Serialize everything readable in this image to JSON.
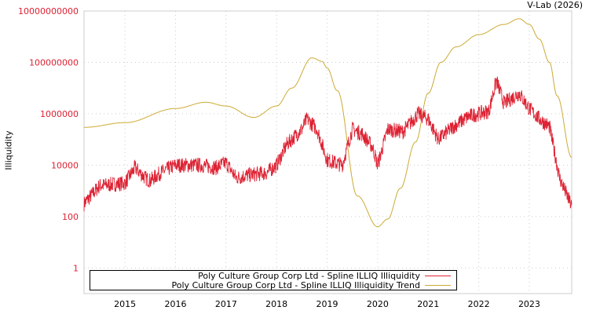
{
  "credit": "V-Lab (2026)",
  "chart_data": {
    "type": "line",
    "title": "",
    "xlabel": "",
    "ylabel": "Illiquidity",
    "yscale": "log",
    "ylim": [
      0.1,
      10000000000
    ],
    "xlim": [
      2014.19,
      2023.84
    ],
    "yticks": [
      "1",
      "100",
      "10000",
      "1000000",
      "100000000",
      "10000000000"
    ],
    "ytick_values": [
      1,
      100,
      10000,
      1000000,
      100000000,
      10000000000
    ],
    "xticks": [
      "2015",
      "2016",
      "2017",
      "2018",
      "2019",
      "2020",
      "2021",
      "2022",
      "2023"
    ],
    "xtick_values": [
      2015,
      2016,
      2017,
      2018,
      2019,
      2020,
      2021,
      2022,
      2023
    ],
    "grid": true,
    "legend_position": "bottom",
    "series": [
      {
        "name": "Poly Culture Group Corp Ltd - Spline ILLIQ Illiquidity",
        "color": "#dd2233",
        "x": [
          2014.19,
          2014.5,
          2015.0,
          2015.2,
          2015.4,
          2015.5,
          2015.7,
          2016.0,
          2016.5,
          2016.8,
          2017.0,
          2017.2,
          2017.4,
          2017.8,
          2018.0,
          2018.2,
          2018.5,
          2018.6,
          2018.8,
          2019.0,
          2019.3,
          2019.5,
          2019.7,
          2019.9,
          2020.0,
          2020.2,
          2020.5,
          2020.8,
          2021.0,
          2021.2,
          2021.5,
          2021.8,
          2022.0,
          2022.2,
          2022.35,
          2022.5,
          2022.8,
          2023.0,
          2023.2,
          2023.4,
          2023.5,
          2023.6,
          2023.75,
          2023.84
        ],
        "values": [
          316,
          1585,
          1995,
          7943,
          3162,
          2512,
          5012,
          10000,
          10000,
          7943,
          12589,
          3162,
          3981,
          5012,
          10000,
          63096,
          251189,
          630957,
          251189,
          15849,
          10000,
          251189,
          158489,
          50119,
          10000,
          251189,
          199526,
          1000000,
          630957,
          100000,
          316228,
          794328,
          1000000,
          1258925,
          19952623,
          2511886,
          6309573,
          1584893,
          630957,
          316228,
          31623,
          3162,
          631,
          251
        ]
      },
      {
        "name": "Poly Culture Group Corp Ltd - Spline ILLIQ Illiquidity Trend",
        "color": "#ccaa33",
        "x": [
          2014.19,
          2015.0,
          2016.0,
          2016.6,
          2017.0,
          2017.55,
          2018.0,
          2018.3,
          2018.7,
          2018.9,
          2019.0,
          2019.2,
          2019.6,
          2020.0,
          2020.2,
          2020.45,
          2020.75,
          2021.0,
          2021.25,
          2021.55,
          2022.0,
          2022.5,
          2022.8,
          2023.0,
          2023.2,
          2023.4,
          2023.55,
          2023.84
        ],
        "values": [
          295000,
          450000,
          1600000,
          2800000,
          2000000,
          720000,
          2000000,
          10000000,
          150000000,
          110000000,
          60000000,
          8000000,
          630,
          40,
          80,
          1260,
          80000,
          6300000,
          100000000,
          400000000,
          1200000000,
          3000000000,
          5000000000,
          3000000000,
          800000000,
          100000000,
          5000000,
          20000
        ]
      }
    ]
  }
}
